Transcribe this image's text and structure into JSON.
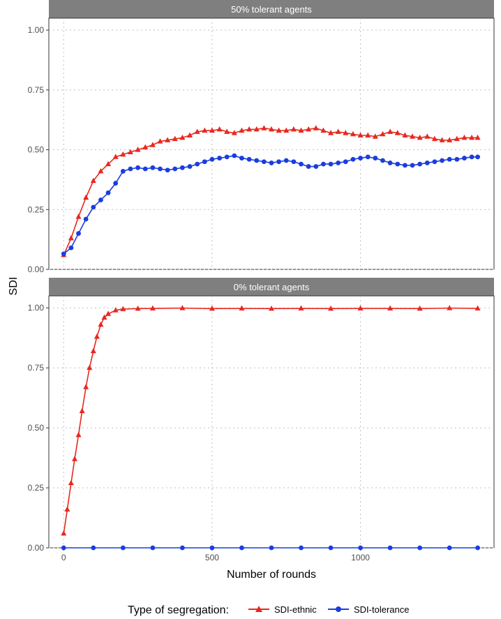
{
  "figure": {
    "y_label": "SDI",
    "x_label": "Number of rounds",
    "legend_title": "Type of segregation:"
  },
  "chart_data": [
    {
      "type": "line",
      "panel_title": "50% tolerant agents",
      "xlim": [
        -50,
        1450
      ],
      "ylim": [
        0.0,
        1.05
      ],
      "x_ticks": [
        0,
        500,
        1000
      ],
      "y_ticks": [
        0.0,
        0.25,
        0.5,
        0.75,
        1.0
      ],
      "y_tick_labels": [
        "0.00",
        "0.25",
        "0.50",
        "0.75",
        "1.00"
      ],
      "grid": true,
      "legend_position": "bottom",
      "series": [
        {
          "name": "SDI-ethnic",
          "marker": "triangle",
          "color": "#e8281f",
          "points": [
            [
              0,
              0.06
            ],
            [
              25,
              0.13
            ],
            [
              50,
              0.22
            ],
            [
              75,
              0.3
            ],
            [
              100,
              0.37
            ],
            [
              125,
              0.41
            ],
            [
              150,
              0.44
            ],
            [
              175,
              0.47
            ],
            [
              200,
              0.48
            ],
            [
              225,
              0.49
            ],
            [
              250,
              0.5
            ],
            [
              275,
              0.51
            ],
            [
              300,
              0.52
            ],
            [
              325,
              0.535
            ],
            [
              350,
              0.54
            ],
            [
              375,
              0.545
            ],
            [
              400,
              0.55
            ],
            [
              425,
              0.56
            ],
            [
              450,
              0.575
            ],
            [
              475,
              0.58
            ],
            [
              500,
              0.58
            ],
            [
              525,
              0.585
            ],
            [
              550,
              0.575
            ],
            [
              575,
              0.57
            ],
            [
              600,
              0.58
            ],
            [
              625,
              0.585
            ],
            [
              650,
              0.585
            ],
            [
              675,
              0.59
            ],
            [
              700,
              0.585
            ],
            [
              725,
              0.58
            ],
            [
              750,
              0.58
            ],
            [
              775,
              0.585
            ],
            [
              800,
              0.58
            ],
            [
              825,
              0.585
            ],
            [
              850,
              0.59
            ],
            [
              875,
              0.58
            ],
            [
              900,
              0.57
            ],
            [
              925,
              0.575
            ],
            [
              950,
              0.57
            ],
            [
              975,
              0.565
            ],
            [
              1000,
              0.56
            ],
            [
              1025,
              0.56
            ],
            [
              1050,
              0.555
            ],
            [
              1075,
              0.565
            ],
            [
              1100,
              0.575
            ],
            [
              1125,
              0.57
            ],
            [
              1150,
              0.56
            ],
            [
              1175,
              0.555
            ],
            [
              1200,
              0.55
            ],
            [
              1225,
              0.555
            ],
            [
              1250,
              0.545
            ],
            [
              1275,
              0.54
            ],
            [
              1300,
              0.54
            ],
            [
              1325,
              0.545
            ],
            [
              1350,
              0.55
            ],
            [
              1375,
              0.55
            ],
            [
              1395,
              0.55
            ]
          ]
        },
        {
          "name": "SDI-tolerance",
          "marker": "circle",
          "color": "#1a3de0",
          "points": [
            [
              0,
              0.065
            ],
            [
              25,
              0.09
            ],
            [
              50,
              0.15
            ],
            [
              75,
              0.21
            ],
            [
              100,
              0.26
            ],
            [
              125,
              0.29
            ],
            [
              150,
              0.32
            ],
            [
              175,
              0.36
            ],
            [
              200,
              0.41
            ],
            [
              225,
              0.42
            ],
            [
              250,
              0.425
            ],
            [
              275,
              0.42
            ],
            [
              300,
              0.425
            ],
            [
              325,
              0.42
            ],
            [
              350,
              0.415
            ],
            [
              375,
              0.42
            ],
            [
              400,
              0.425
            ],
            [
              425,
              0.43
            ],
            [
              450,
              0.44
            ],
            [
              475,
              0.45
            ],
            [
              500,
              0.46
            ],
            [
              525,
              0.465
            ],
            [
              550,
              0.47
            ],
            [
              575,
              0.475
            ],
            [
              600,
              0.465
            ],
            [
              625,
              0.46
            ],
            [
              650,
              0.455
            ],
            [
              675,
              0.45
            ],
            [
              700,
              0.445
            ],
            [
              725,
              0.45
            ],
            [
              750,
              0.455
            ],
            [
              775,
              0.45
            ],
            [
              800,
              0.44
            ],
            [
              825,
              0.43
            ],
            [
              850,
              0.43
            ],
            [
              875,
              0.44
            ],
            [
              900,
              0.44
            ],
            [
              925,
              0.445
            ],
            [
              950,
              0.45
            ],
            [
              975,
              0.46
            ],
            [
              1000,
              0.465
            ],
            [
              1025,
              0.47
            ],
            [
              1050,
              0.465
            ],
            [
              1075,
              0.455
            ],
            [
              1100,
              0.445
            ],
            [
              1125,
              0.44
            ],
            [
              1150,
              0.435
            ],
            [
              1175,
              0.435
            ],
            [
              1200,
              0.44
            ],
            [
              1225,
              0.445
            ],
            [
              1250,
              0.45
            ],
            [
              1275,
              0.455
            ],
            [
              1300,
              0.46
            ],
            [
              1325,
              0.46
            ],
            [
              1350,
              0.465
            ],
            [
              1375,
              0.47
            ],
            [
              1395,
              0.47
            ]
          ]
        }
      ]
    },
    {
      "type": "line",
      "panel_title": "0% tolerant agents",
      "xlim": [
        -50,
        1450
      ],
      "ylim": [
        0.0,
        1.05
      ],
      "x_ticks": [
        0,
        500,
        1000
      ],
      "x_tick_labels": [
        "0",
        "500",
        "1000"
      ],
      "y_ticks": [
        0.0,
        0.25,
        0.5,
        0.75,
        1.0
      ],
      "y_tick_labels": [
        "0.00",
        "0.25",
        "0.50",
        "0.75",
        "1.00"
      ],
      "grid": true,
      "legend_position": "bottom",
      "series": [
        {
          "name": "SDI-ethnic",
          "marker": "triangle",
          "color": "#e8281f",
          "points": [
            [
              0,
              0.06
            ],
            [
              12,
              0.16
            ],
            [
              25,
              0.27
            ],
            [
              37,
              0.37
            ],
            [
              50,
              0.47
            ],
            [
              62,
              0.57
            ],
            [
              75,
              0.67
            ],
            [
              87,
              0.75
            ],
            [
              100,
              0.82
            ],
            [
              112,
              0.88
            ],
            [
              125,
              0.93
            ],
            [
              137,
              0.96
            ],
            [
              150,
              0.975
            ],
            [
              175,
              0.99
            ],
            [
              200,
              0.995
            ],
            [
              250,
              0.997
            ],
            [
              300,
              0.998
            ],
            [
              400,
              0.999
            ],
            [
              500,
              0.997
            ],
            [
              600,
              0.998
            ],
            [
              700,
              0.997
            ],
            [
              800,
              0.998
            ],
            [
              900,
              0.997
            ],
            [
              1000,
              0.998
            ],
            [
              1100,
              0.998
            ],
            [
              1200,
              0.997
            ],
            [
              1300,
              0.999
            ],
            [
              1395,
              0.998
            ]
          ]
        },
        {
          "name": "SDI-tolerance",
          "marker": "circle",
          "color": "#1a3de0",
          "points": [
            [
              0,
              0.0
            ],
            [
              100,
              0.0
            ],
            [
              200,
              0.0
            ],
            [
              300,
              0.0
            ],
            [
              400,
              0.0
            ],
            [
              500,
              0.0
            ],
            [
              600,
              0.0
            ],
            [
              700,
              0.0
            ],
            [
              800,
              0.0
            ],
            [
              900,
              0.0
            ],
            [
              1000,
              0.0
            ],
            [
              1100,
              0.0
            ],
            [
              1200,
              0.0
            ],
            [
              1300,
              0.0
            ],
            [
              1395,
              0.0
            ]
          ]
        }
      ]
    }
  ]
}
